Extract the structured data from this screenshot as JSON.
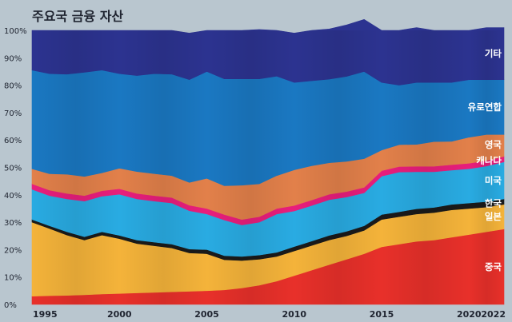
{
  "chart_data": {
    "type": "area",
    "stacked": true,
    "title": "주요국 금융 자산",
    "xlabel": "",
    "ylabel": "",
    "ylim": [
      0,
      100
    ],
    "y_ticks": [
      "0%",
      "10%",
      "20%",
      "30%",
      "40%",
      "50%",
      "60%",
      "70%",
      "80%",
      "90%",
      "100%"
    ],
    "x_ticks": [
      1995,
      2000,
      2005,
      2010,
      2015,
      2020,
      2022
    ],
    "x": [
      1995,
      1996,
      1997,
      1998,
      1999,
      2000,
      2001,
      2002,
      2003,
      2004,
      2005,
      2006,
      2007,
      2008,
      2009,
      2010,
      2011,
      2012,
      2013,
      2014,
      2015,
      2016,
      2017,
      2018,
      2019,
      2020,
      2021,
      2022
    ],
    "series": [
      {
        "name": "중국",
        "color": "#e8302a",
        "values": [
          3,
          3.2,
          3.3,
          3.5,
          3.8,
          4,
          4.2,
          4.4,
          4.6,
          4.8,
          5,
          5.3,
          6,
          7,
          8.5,
          10.5,
          12.5,
          14.5,
          16.5,
          18.5,
          21,
          22,
          23,
          23.5,
          24.5,
          25.5,
          26.5,
          27.5
        ]
      },
      {
        "name": "일본",
        "color": "#f4b33a",
        "values": [
          27,
          24.5,
          22,
          20,
          21.5,
          20,
          18,
          17,
          16,
          14,
          13.5,
          11,
          10,
          9.5,
          9,
          9,
          9,
          9,
          8.5,
          8.5,
          10,
          10,
          10,
          10,
          10,
          9.5,
          9,
          9
        ]
      },
      {
        "name": "한국",
        "color": "#1a1a1a",
        "values": [
          1,
          1,
          1.2,
          1.2,
          1.2,
          1.2,
          1.3,
          1.3,
          1.4,
          1.4,
          1.5,
          1.5,
          1.5,
          1.5,
          1.5,
          1.6,
          1.6,
          1.7,
          1.7,
          1.7,
          1.8,
          1.8,
          1.9,
          1.9,
          2,
          2,
          2,
          2
        ]
      },
      {
        "name": "미국",
        "color": "#29abe2",
        "values": [
          11,
          11,
          12,
          13,
          13,
          15,
          15,
          15,
          15,
          14,
          13,
          13,
          11.5,
          12,
          14,
          13,
          13,
          13,
          12.5,
          12,
          14,
          14.5,
          13.5,
          13,
          12.5,
          12.5,
          13,
          13.5
        ]
      },
      {
        "name": "캐나다",
        "color": "#e81e7c",
        "values": [
          2,
          2,
          2,
          2,
          2,
          2,
          2,
          2,
          2,
          2,
          2,
          2,
          2,
          2,
          2,
          2,
          2,
          2,
          2,
          2,
          2,
          2,
          2,
          2,
          2,
          2,
          2,
          2
        ]
      },
      {
        "name": "영국",
        "color": "#e2804a",
        "values": [
          5.5,
          6,
          7,
          7,
          6.5,
          7.5,
          8,
          8,
          8,
          8.3,
          11,
          10.5,
          12.5,
          12,
          12,
          13,
          12.5,
          11.5,
          11,
          10.5,
          7.5,
          8,
          8,
          9,
          8.5,
          9.5,
          9.5,
          8
        ]
      },
      {
        "name": "유로연합",
        "color": "#1a78c2",
        "values": [
          36,
          36.5,
          36.5,
          38,
          37.5,
          34.5,
          35,
          36.5,
          37,
          37.5,
          39,
          39,
          38.8,
          38.3,
          36.3,
          31.9,
          31,
          30.5,
          31,
          31.8,
          24.7,
          21.7,
          22.6,
          21.6,
          21.5,
          21,
          20,
          20
        ]
      },
      {
        "name": "기타",
        "color": "#2c3390",
        "values": [
          14.5,
          15.8,
          16,
          15.3,
          14.5,
          15.8,
          16.5,
          15.8,
          16,
          17,
          15,
          17.7,
          17.7,
          18,
          16.7,
          18,
          18.4,
          18.3,
          18.8,
          19,
          19,
          20,
          20,
          19,
          19,
          18,
          19,
          19
        ]
      }
    ],
    "grid": false,
    "legend": "direct labels at right edge"
  }
}
